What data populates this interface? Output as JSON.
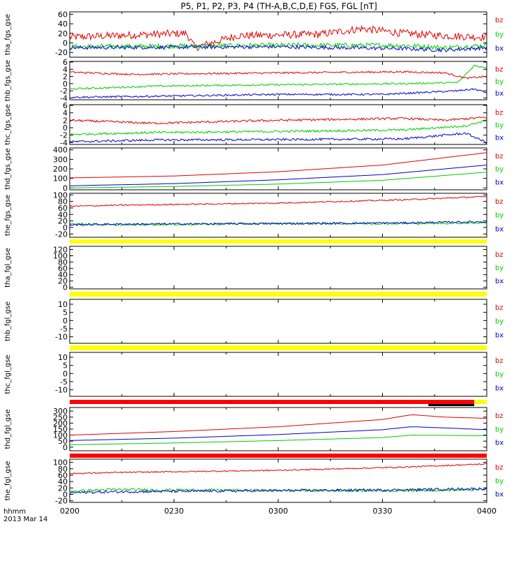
{
  "title": "P5, P1, P2, P3, P4 (TH-A,B,C,D,E) FGS, FGL [nT]",
  "x_axis": {
    "label_top": "hhmm",
    "label_bottom": "2013 Mar 14",
    "ticks": [
      "0200",
      "0230",
      "0300",
      "0330",
      "0400"
    ]
  },
  "colors": {
    "bz": "#e00000",
    "by": "#00cc00",
    "bx": "#0000cc",
    "flag_yellow": "#ffff00",
    "flag_red": "#ff0000",
    "flag_black": "#000000"
  },
  "chart_data": [
    {
      "type": "line",
      "ylabel": "tha_fgs_gse",
      "ylim": [
        -30,
        65
      ],
      "yticks": [
        "60",
        "40",
        "20",
        "0",
        "-20"
      ],
      "ytick_values": [
        60,
        40,
        20,
        0,
        -20
      ],
      "series": [
        {
          "name": "bz",
          "x": [
            0,
            0.2,
            0.28,
            0.3,
            0.4,
            0.6,
            0.7,
            0.8,
            0.9,
            1.0
          ],
          "y": [
            12,
            18,
            20,
            -10,
            15,
            18,
            30,
            20,
            15,
            12
          ],
          "noise": 8
        },
        {
          "name": "by",
          "x": [
            0,
            0.5,
            0.8,
            0.9,
            1.0
          ],
          "y": [
            -8,
            -5,
            -5,
            -10,
            -5
          ],
          "noise": 5
        },
        {
          "name": "bx",
          "x": [
            0,
            0.5,
            0.8,
            0.9,
            1.0
          ],
          "y": [
            -10,
            -8,
            -12,
            -15,
            -10
          ],
          "noise": 4
        }
      ]
    },
    {
      "type": "line",
      "ylabel": "thb_fgs_gse",
      "ylim": [
        -4.5,
        6.2
      ],
      "yticks": [
        "6",
        "4",
        "2",
        "0",
        "-2",
        "-4"
      ],
      "ytick_values": [
        6,
        4,
        2,
        0,
        -2,
        -4
      ],
      "series": [
        {
          "name": "bz",
          "x": [
            0,
            0.15,
            0.5,
            0.8,
            0.9,
            0.95,
            1.0
          ],
          "y": [
            3.2,
            2.6,
            3.0,
            3.3,
            3.0,
            1.5,
            2.0
          ],
          "noise": 0.25
        },
        {
          "name": "by",
          "x": [
            0,
            0.2,
            0.5,
            0.8,
            0.93,
            0.97,
            1.0
          ],
          "y": [
            -1.5,
            -0.7,
            -0.3,
            0.0,
            0.3,
            5.0,
            4.5
          ],
          "noise": 0.25
        },
        {
          "name": "bx",
          "x": [
            0,
            0.15,
            0.5,
            0.75,
            0.93,
            0.97,
            1.0
          ],
          "y": [
            -3.8,
            -3.6,
            -3.0,
            -3.0,
            -2.0,
            -1.5,
            -2.5
          ],
          "noise": 0.25
        }
      ]
    },
    {
      "type": "line",
      "ylabel": "thc_fgs_gse",
      "ylim": [
        -4.5,
        6.2
      ],
      "yticks": [
        "6",
        "4",
        "2",
        "0",
        "-2",
        "-4"
      ],
      "ytick_values": [
        6,
        4,
        2,
        0,
        -2,
        -4
      ],
      "series": [
        {
          "name": "bz",
          "x": [
            0,
            0.2,
            0.5,
            0.8,
            0.9,
            1.0
          ],
          "y": [
            2.0,
            1.2,
            2.0,
            2.5,
            2.0,
            2.8
          ],
          "noise": 0.3
        },
        {
          "name": "by",
          "x": [
            0,
            0.2,
            0.5,
            0.8,
            0.95,
            1.0
          ],
          "y": [
            -1.8,
            -1.3,
            -1.0,
            -0.6,
            0.5,
            2.0
          ],
          "noise": 0.3
        },
        {
          "name": "bx",
          "x": [
            0,
            0.2,
            0.5,
            0.8,
            0.95,
            1.0
          ],
          "y": [
            -3.8,
            -3.3,
            -3.2,
            -3.0,
            -1.5,
            -4.0
          ],
          "noise": 0.3
        }
      ]
    },
    {
      "type": "line",
      "ylabel": "thd_fgs_gse",
      "ylim": [
        -20,
        420
      ],
      "yticks": [
        "400",
        "300",
        "200",
        "100",
        "0"
      ],
      "ytick_values": [
        400,
        300,
        200,
        100,
        0
      ],
      "series": [
        {
          "name": "bz",
          "x": [
            0,
            0.25,
            0.5,
            0.75,
            1.0
          ],
          "y": [
            105,
            125,
            170,
            240,
            370
          ],
          "noise": 0
        },
        {
          "name": "bx",
          "x": [
            0,
            0.25,
            0.5,
            0.75,
            1.0
          ],
          "y": [
            22,
            45,
            85,
            140,
            240
          ],
          "noise": 0
        },
        {
          "name": "by",
          "x": [
            0,
            0.25,
            0.5,
            0.75,
            1.0
          ],
          "y": [
            0,
            15,
            40,
            80,
            165
          ],
          "noise": 0
        }
      ]
    },
    {
      "type": "line",
      "ylabel": "the_fgs_gse",
      "ylim": [
        -30,
        105
      ],
      "yticks": [
        "100",
        "80",
        "60",
        "40",
        "20",
        "0",
        "-20"
      ],
      "ytick_values": [
        100,
        80,
        60,
        40,
        20,
        0,
        -20
      ],
      "series": [
        {
          "name": "bz",
          "x": [
            0,
            0.1,
            0.5,
            0.8,
            1.0
          ],
          "y": [
            65,
            68,
            75,
            85,
            95
          ],
          "noise": 2
        },
        {
          "name": "by",
          "x": [
            0,
            0.1,
            0.5,
            0.8,
            1.0
          ],
          "y": [
            12,
            8,
            12,
            12,
            14
          ],
          "noise": 3
        },
        {
          "name": "bx",
          "x": [
            0,
            0.1,
            0.5,
            0.8,
            1.0
          ],
          "y": [
            8,
            10,
            12,
            14,
            18
          ],
          "noise": 3
        }
      ]
    },
    {
      "type": "line",
      "ylabel": "tha_fgl_gse",
      "ylim": [
        -5,
        130
      ],
      "yticks": [
        "120",
        "100",
        "80",
        "60",
        "40",
        "20",
        "0"
      ],
      "ytick_values": [
        120,
        100,
        80,
        60,
        40,
        20,
        0
      ],
      "series": []
    },
    {
      "type": "line",
      "ylabel": "thb_fgl_gse",
      "ylim": [
        -14,
        13
      ],
      "yticks": [
        "10",
        "5",
        "0",
        "-5",
        "-10"
      ],
      "ytick_values": [
        10,
        5,
        0,
        -5,
        -10
      ],
      "series": []
    },
    {
      "type": "line",
      "ylabel": "thc_fgl_gse",
      "ylim": [
        -14,
        13
      ],
      "yticks": [
        "10",
        "5",
        "0",
        "-5",
        "-10"
      ],
      "ytick_values": [
        10,
        5,
        0,
        -5,
        -10
      ],
      "series": []
    },
    {
      "type": "line",
      "ylabel": "thd_fgl_gse",
      "ylim": [
        -30,
        330
      ],
      "yticks": [
        "300",
        "250",
        "200",
        "150",
        "100",
        "50",
        "0"
      ],
      "ytick_values": [
        300,
        250,
        200,
        150,
        100,
        50,
        0
      ],
      "series": [
        {
          "name": "bz",
          "x": [
            0,
            0.25,
            0.5,
            0.75,
            0.82,
            0.9,
            1.0
          ],
          "y": [
            100,
            130,
            170,
            230,
            270,
            250,
            240
          ],
          "noise": 0
        },
        {
          "name": "bx",
          "x": [
            0,
            0.25,
            0.5,
            0.75,
            0.82,
            0.9,
            1.0
          ],
          "y": [
            55,
            75,
            105,
            145,
            170,
            160,
            145
          ],
          "noise": 0
        },
        {
          "name": "by",
          "x": [
            0,
            0.25,
            0.5,
            0.75,
            0.82,
            0.9,
            1.0
          ],
          "y": [
            20,
            35,
            55,
            80,
            100,
            98,
            95
          ],
          "noise": 0
        }
      ]
    },
    {
      "type": "line",
      "ylabel": "the_fgl_gse",
      "ylim": [
        -25,
        110
      ],
      "yticks": [
        "100",
        "80",
        "60",
        "40",
        "20",
        "0",
        "-20"
      ],
      "ytick_values": [
        100,
        80,
        60,
        40,
        20,
        0,
        -20
      ],
      "series": [
        {
          "name": "bz",
          "x": [
            0,
            0.1,
            0.5,
            0.8,
            1.0
          ],
          "y": [
            65,
            68,
            75,
            85,
            95
          ],
          "noise": 2
        },
        {
          "name": "by",
          "x": [
            0,
            0.1,
            0.5,
            0.8,
            1.0
          ],
          "y": [
            10,
            15,
            12,
            12,
            15
          ],
          "noise": 4
        },
        {
          "name": "bx",
          "x": [
            0,
            0.1,
            0.5,
            0.8,
            1.0
          ],
          "y": [
            5,
            8,
            12,
            14,
            18
          ],
          "noise": 4
        }
      ]
    }
  ],
  "flag_bars": [
    {
      "after_panel": 4,
      "segments": [
        {
          "color": "yellow",
          "from": 0,
          "to": 1
        }
      ]
    },
    {
      "after_panel": 5,
      "segments": [
        {
          "color": "yellow",
          "from": 0,
          "to": 1
        }
      ]
    },
    {
      "after_panel": 6,
      "segments": [
        {
          "color": "yellow",
          "from": 0,
          "to": 1
        }
      ]
    },
    {
      "after_panel": 7,
      "segments": [
        {
          "color": "red",
          "from": 0,
          "to": 0.97
        },
        {
          "color": "yellow",
          "from": 0.97,
          "to": 1
        }
      ],
      "sub_segments": [
        {
          "color": "black",
          "from": 0.86,
          "to": 0.97
        }
      ]
    },
    {
      "after_panel": 8,
      "segments": [
        {
          "color": "red",
          "from": 0,
          "to": 1
        }
      ]
    }
  ],
  "legend_labels": [
    "bz",
    "by",
    "bx"
  ]
}
